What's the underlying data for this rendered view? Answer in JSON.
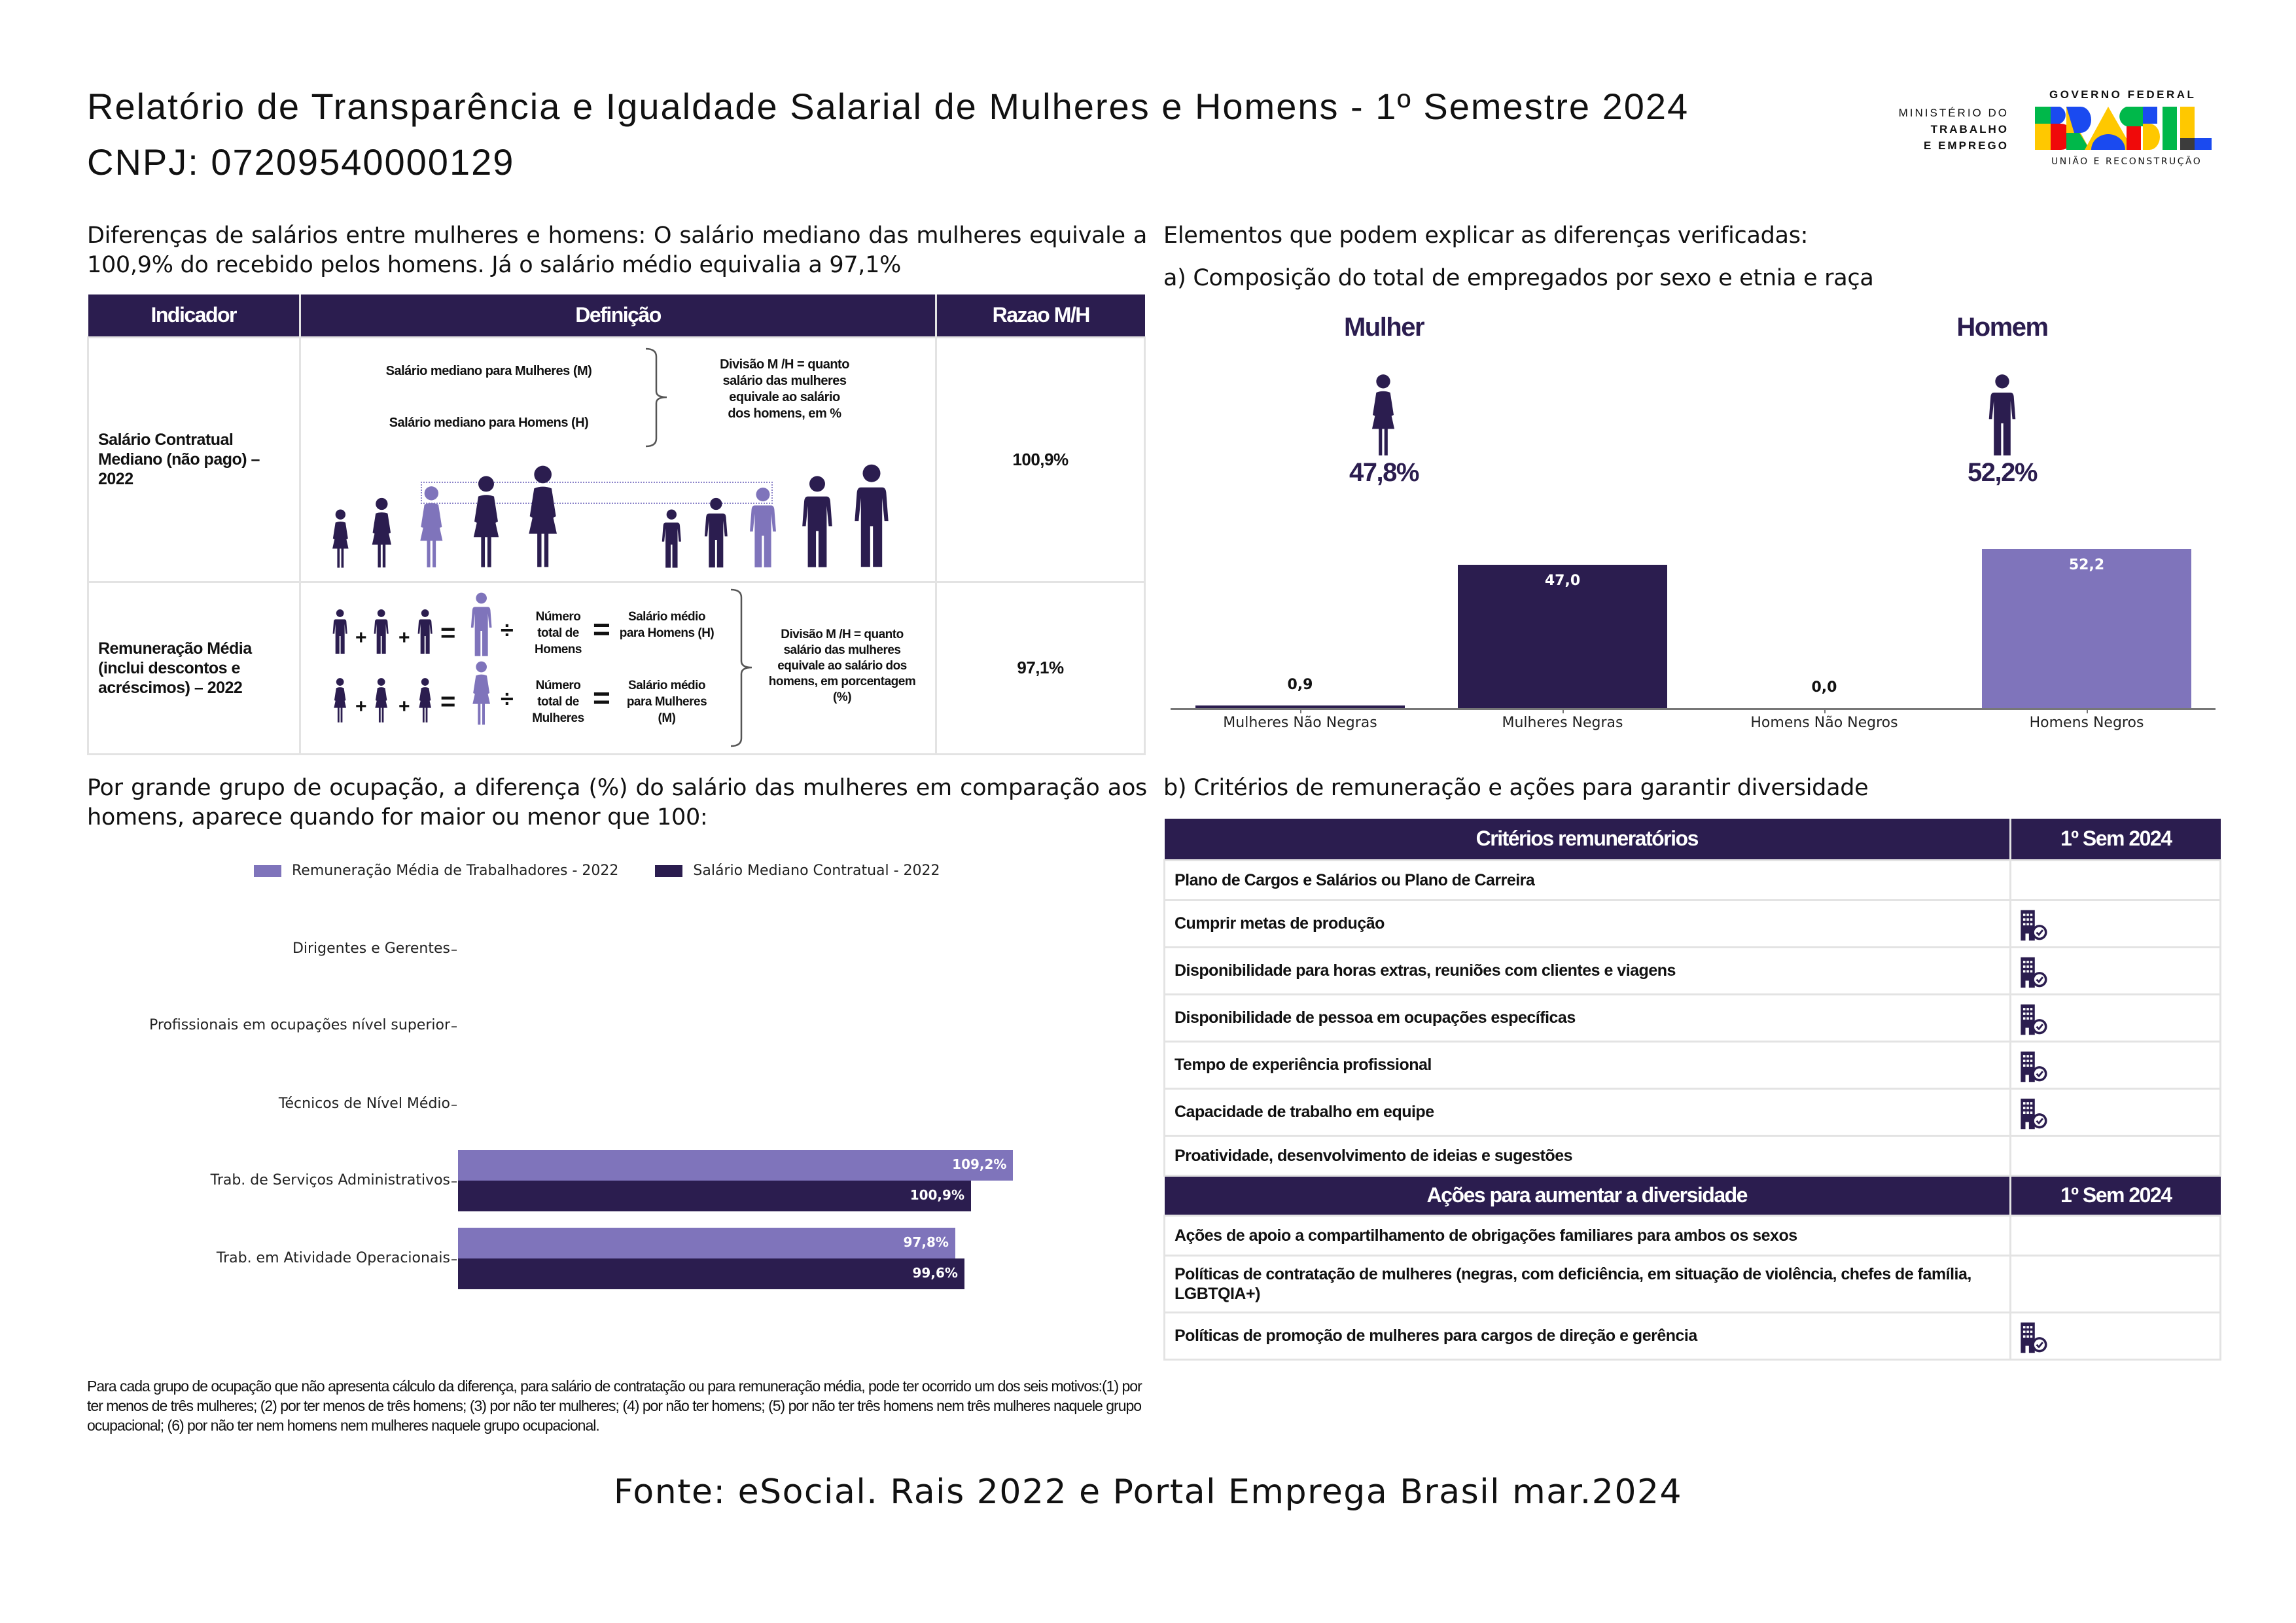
{
  "header": {
    "title": "Relatório de Transparência e Igualdade Salarial de Mulheres e Homens - 1º Semestre 2024",
    "cnpj": "CNPJ: 07209540000129",
    "logo": {
      "ministry_line1": "MINISTÉRIO DO",
      "ministry_line2": "TRABALHO",
      "ministry_line3": "E EMPREGO",
      "gov": "GOVERNO FEDERAL",
      "brasil": "BRASIL",
      "slogan": "UNIÃO E RECONSTRUÇÃO"
    }
  },
  "left": {
    "intro": "Diferenças de salários entre mulheres e homens: O salário mediano das mulheres equivale a 100,9% do recebido pelos homens. Já o salário médio equivalia a 97,1%",
    "table": {
      "headers": [
        "Indicador",
        "Definição",
        "Razao M/H"
      ],
      "row1": {
        "indicator": "Salário Contratual Mediano (não pago) – 2022",
        "def_m": "Salário mediano para Mulheres (M)",
        "def_h": "Salário mediano para Homens (H)",
        "division": "Divisão M /H = quanto salário das mulheres equivale ao salário dos homens, em %",
        "ratio": "100,9%"
      },
      "row2": {
        "indicator": "Remuneração Média (inclui descontos e acréscimos) – 2022",
        "total_h": "Número total de Homens",
        "total_m": "Número total de Mulheres",
        "avg_h": "Salário médio para Homens (H)",
        "avg_m": "Salário médio para Mulheres (M)",
        "division": "Divisão M /H = quanto salário das mulheres equivale ao salário dos homens, em porcentagem (%)",
        "ratio": "97,1%",
        "plus": "+",
        "equals": "=",
        "divide": "÷"
      }
    },
    "occupation_intro": "Por grande grupo de ocupação, a diferença (%) do salário das mulheres em comparação aos homens, aparece quando for maior ou menor que 100:",
    "footnote": "Para cada grupo de ocupação que não apresenta cálculo da diferença, para salário de contratação ou para remuneração média, pode ter ocorrido um dos seis motivos:(1) por ter menos de três mulheres; (2) por ter menos de três homens; (3) por não ter mulheres; (4) por não ter homens; (5) por não ter três homens nem três mulheres naquele grupo ocupacional; (6) por não ter nem homens nem mulheres naquele grupo ocupacional."
  },
  "right": {
    "heading": "Elementos que podem explicar as diferenças verificadas:",
    "sub_a": "a) Composição do total de empregados por sexo e etnia e raça",
    "mulher_label": "Mulher",
    "mulher_pct": "47,8%",
    "homem_label": "Homem",
    "homem_pct": "52,2%",
    "sub_b": "b) Critérios de remuneração e ações para garantir diversidade",
    "criteria": {
      "header": "Critérios remuneratórios",
      "period": "1º Sem 2024",
      "rows": [
        {
          "label": "Plano de Cargos e Salários ou Plano de Carreira",
          "checked": false
        },
        {
          "label": "Cumprir metas de produção",
          "checked": true
        },
        {
          "label": "Disponibilidade para horas extras, reuniões com clientes e viagens",
          "checked": true
        },
        {
          "label": "Disponibilidade de pessoa em ocupações específicas",
          "checked": true
        },
        {
          "label": "Tempo de experiência profissional",
          "checked": true
        },
        {
          "label": "Capacidade de trabalho em equipe",
          "checked": true
        },
        {
          "label": "Proatividade, desenvolvimento de ideias e sugestões",
          "checked": false
        }
      ]
    },
    "actions": {
      "header": "Ações para aumentar a diversidade",
      "period": "1º Sem 2024",
      "rows": [
        {
          "label": "Ações de apoio a compartilhamento de obrigações familiares para ambos os sexos",
          "checked": false
        },
        {
          "label": "Políticas de contratação de mulheres (negras, com deficiência, em situação de violência, chefes de família, LGBTQIA+)",
          "checked": false
        },
        {
          "label": "Políticas de promoção de mulheres para cargos de direção e gerência",
          "checked": true
        }
      ]
    }
  },
  "source": "Fonte: eSocial. Rais 2022 e Portal Emprega Brasil mar.2024",
  "colors": {
    "dark": "#2b1d4f",
    "light": "#7f74bb"
  },
  "chart_data": [
    {
      "type": "bar",
      "title": "Composição do total de empregados por sexo e etnia e raça",
      "categories": [
        "Mulheres Não Negras",
        "Mulheres Negras",
        "Homens Não Negros",
        "Homens Negros"
      ],
      "values": [
        0.9,
        47.0,
        0.0,
        52.2
      ],
      "labels": [
        "0,9",
        "47,0",
        "0,0",
        "52,2"
      ],
      "colors": [
        "#2b1d4f",
        "#2b1d4f",
        "#2b1d4f",
        "#7f74bb"
      ],
      "ylim": [
        0,
        52.2
      ]
    },
    {
      "type": "bar",
      "orientation": "horizontal",
      "categories": [
        "Dirigentes e Gerentes",
        "Profissionais em ocupações nível superior",
        "Técnicos de Nível Médio",
        "Trab. de Serviços Administrativos",
        "Trab. em Atividade Operacionais"
      ],
      "series": [
        {
          "name": "Remuneração Média de Trabalhadores - 2022",
          "color": "#7f74bb",
          "values": [
            null,
            null,
            null,
            109.2,
            97.8
          ],
          "labels": [
            "",
            "",
            "",
            "109,2%",
            "97,8%"
          ]
        },
        {
          "name": "Salário Mediano Contratual - 2022",
          "color": "#2b1d4f",
          "values": [
            null,
            null,
            null,
            100.9,
            99.6
          ],
          "labels": [
            "",
            "",
            "",
            "100,9%",
            "99,6%"
          ]
        }
      ],
      "legend": "top",
      "xlim": [
        0,
        109.2
      ]
    }
  ]
}
